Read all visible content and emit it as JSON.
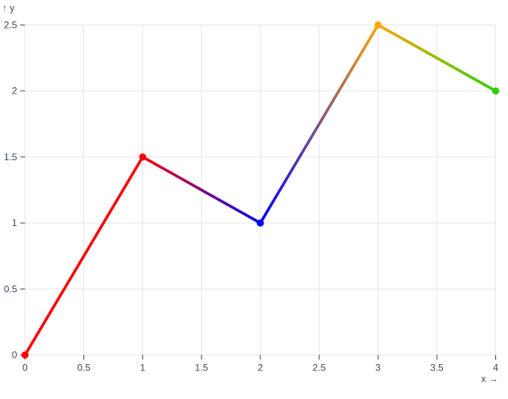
{
  "page": {
    "background": "#ffffff",
    "text_color": "#3b4a5a",
    "grid_color": "#e4e7ea"
  },
  "chart_data": {
    "type": "line",
    "title": "",
    "xlabel": "x →",
    "ylabel": "↑ y",
    "x": [
      0,
      1,
      2,
      3,
      4
    ],
    "y": [
      0,
      1.5,
      1,
      2.5,
      2
    ],
    "point_colors": [
      "#ff0000",
      "#ff0000",
      "#0000ff",
      "#ffa500",
      "#2ed000"
    ],
    "segment_gradients": [
      [
        "#ff0000",
        "#ff0000"
      ],
      [
        "#ff0000",
        "#0000ff"
      ],
      [
        "#0000ff",
        "#ffa500"
      ],
      [
        "#ffa500",
        "#2ed000"
      ]
    ],
    "xlim": [
      0,
      4
    ],
    "ylim": [
      0,
      2.5
    ],
    "xticks": {
      "values": [
        0,
        0.5,
        1,
        1.5,
        2,
        2.5,
        3,
        3.5,
        4
      ],
      "labels": [
        "0",
        "0.5",
        "1",
        "1.5",
        "2",
        "2.5",
        "3",
        "3.5",
        "4"
      ]
    },
    "yticks": {
      "values": [
        0,
        0.5,
        1,
        1.5,
        2,
        2.5
      ],
      "labels": [
        "0",
        "0.5",
        "1",
        "1.5",
        "2",
        "2.5"
      ]
    },
    "grid": true,
    "legend": false
  }
}
